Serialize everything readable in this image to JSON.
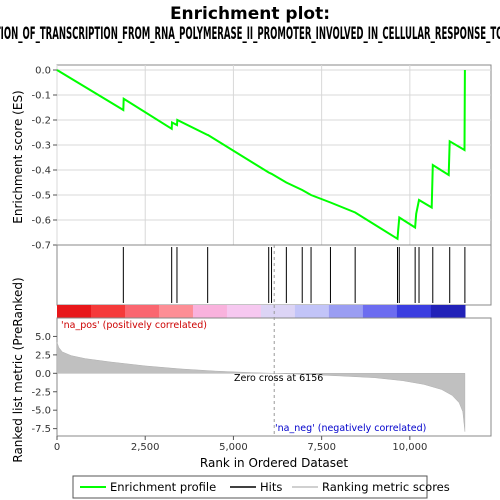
{
  "chart_data": {
    "type": "line",
    "title_lines": [
      "Enrichment plot:",
      "GO_POSITIVE_REGULATION_OF_TRANSCRIPTION_FROM_RNA_POLYMERASE_II_PROMOTER_INVOLVED_IN_CELLULAR_RESPONSE_TO_CHEMICAL_STIMULUS"
    ],
    "es_panel": {
      "ylabel": "Enrichment score (ES)",
      "ylim": [
        -0.7,
        0.02
      ],
      "yticks": [
        0.0,
        -0.1,
        -0.2,
        -0.3,
        -0.4,
        -0.5,
        -0.6,
        -0.7
      ],
      "ytick_labels": [
        "0.0",
        "-0.1",
        "-0.2",
        "-0.3",
        "-0.4",
        "-0.5",
        "-0.6",
        "-0.7"
      ],
      "grid": true,
      "color": "#00ff00",
      "series_name": "Enrichment profile",
      "points": [
        [
          0,
          0.0
        ],
        [
          1880,
          -0.16
        ],
        [
          1890,
          -0.115
        ],
        [
          3250,
          -0.235
        ],
        [
          3260,
          -0.21
        ],
        [
          3400,
          -0.22
        ],
        [
          3410,
          -0.2
        ],
        [
          4270,
          -0.26
        ],
        [
          4280,
          -0.26
        ],
        [
          6000,
          -0.41
        ],
        [
          6080,
          -0.415
        ],
        [
          6500,
          -0.45
        ],
        [
          6950,
          -0.48
        ],
        [
          7200,
          -0.5
        ],
        [
          7750,
          -0.53
        ],
        [
          8450,
          -0.57
        ],
        [
          9650,
          -0.675
        ],
        [
          9670,
          -0.64
        ],
        [
          9700,
          -0.59
        ],
        [
          10150,
          -0.63
        ],
        [
          10180,
          -0.575
        ],
        [
          10260,
          -0.52
        ],
        [
          10620,
          -0.55
        ],
        [
          10650,
          -0.38
        ],
        [
          11100,
          -0.42
        ],
        [
          11130,
          -0.285
        ],
        [
          11550,
          -0.32
        ],
        [
          11560,
          0.0
        ]
      ]
    },
    "hits_panel": {
      "series_name": "Hits",
      "positions": [
        1880,
        3250,
        3400,
        4270,
        6000,
        6080,
        6500,
        6950,
        7200,
        7750,
        8450,
        9650,
        9700,
        10150,
        10260,
        10650,
        11130,
        11560
      ]
    },
    "rank_panel": {
      "ylabel": "Ranked list metric (PreRanked)",
      "ylim": [
        -8.5,
        7.5
      ],
      "yticks": [
        5.0,
        2.5,
        0.0,
        -2.5,
        -5.0,
        -7.5
      ],
      "ytick_labels": [
        "5.0",
        "2.5",
        "0.0",
        "-2.5",
        "-5.0",
        "-7.5"
      ],
      "series_name": "Ranking metric scores",
      "fill_color": "#c0c0c0",
      "profile": [
        [
          0,
          4.2
        ],
        [
          50,
          3.5
        ],
        [
          150,
          2.9
        ],
        [
          400,
          2.4
        ],
        [
          800,
          2.0
        ],
        [
          1500,
          1.55
        ],
        [
          2500,
          1.0
        ],
        [
          3500,
          0.6
        ],
        [
          4500,
          0.3
        ],
        [
          5500,
          0.1
        ],
        [
          6156,
          0.0
        ],
        [
          7000,
          -0.15
        ],
        [
          8000,
          -0.35
        ],
        [
          9000,
          -0.6
        ],
        [
          9800,
          -1.0
        ],
        [
          10400,
          -1.5
        ],
        [
          10900,
          -2.2
        ],
        [
          11200,
          -3.0
        ],
        [
          11400,
          -4.0
        ],
        [
          11500,
          -5.2
        ],
        [
          11560,
          -7.9
        ]
      ],
      "zero_cross_label": "Zero cross at 6156",
      "zero_cross": 6156,
      "pos_label": "'na_pos' (positively correlated)",
      "neg_label": "'na_neg' (negatively correlated)"
    },
    "xlabel": "Rank in Ordered Dataset",
    "xlim": [
      0,
      12300
    ],
    "xticks": [
      0,
      2500,
      5000,
      7500,
      10000
    ],
    "xtick_labels": [
      "0",
      "2,500",
      "5,000",
      "7,500",
      "10,000"
    ],
    "max_rank": 11560,
    "colorbar_colors": [
      "#e8171a",
      "#f53a3a",
      "#fa6670",
      "#fd8e95",
      "#f9b2dd",
      "#f6c8f0",
      "#dcd4f5",
      "#c2c4f8",
      "#9a9df2",
      "#6c6cf0",
      "#3b3ee0",
      "#2222b8"
    ],
    "legend": [
      {
        "label": "Enrichment profile",
        "color": "#00ff00",
        "kind": "line"
      },
      {
        "label": "Hits",
        "color": "#000000",
        "kind": "line"
      },
      {
        "label": "Ranking metric scores",
        "color": "#c0c0c0",
        "kind": "line"
      }
    ]
  }
}
